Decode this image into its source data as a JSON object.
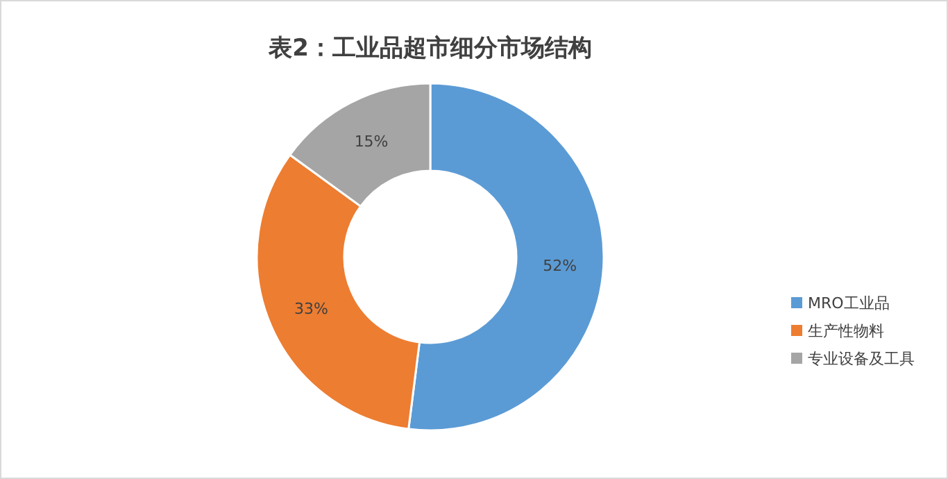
{
  "chart_data": {
    "type": "donut",
    "title": "表2：工业品超市细分市场结构",
    "categories": [
      "MRO工业品",
      "生产性物料",
      "专业设备及工具"
    ],
    "values": [
      52,
      33,
      15
    ],
    "colors": [
      "#5b9bd5",
      "#ed7d31",
      "#a5a5a5"
    ],
    "value_labels": [
      "52%",
      "33%",
      "15%"
    ],
    "legend": "right"
  }
}
